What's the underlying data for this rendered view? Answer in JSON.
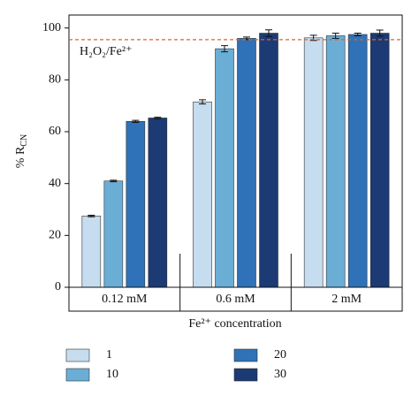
{
  "chart_data": {
    "type": "bar",
    "y_label": {
      "text": "% R",
      "sub": "CN"
    },
    "x_label": "Fe²⁺ concentration",
    "categories": [
      "0.12 mM",
      "0.6 mM",
      "2 mM"
    ],
    "series": [
      {
        "name": "1",
        "color": "#c6dcef",
        "values": [
          27.5,
          71.5,
          96.2
        ],
        "errors": [
          0.3,
          0.8,
          1.0
        ]
      },
      {
        "name": "10",
        "color": "#6aaed6",
        "values": [
          41,
          92,
          97
        ],
        "errors": [
          0.3,
          1.2,
          1.0
        ]
      },
      {
        "name": "20",
        "color": "#2f72b8",
        "values": [
          64,
          96,
          97.5
        ],
        "errors": [
          0.4,
          0.5,
          0.5
        ]
      },
      {
        "name": "30",
        "color": "#1c3a73",
        "values": [
          65.3,
          98,
          98
        ],
        "errors": [
          0.3,
          1.3,
          1.2
        ]
      }
    ],
    "reference_line": {
      "value": 95.5,
      "label": "H₂O₂/Fe²⁺",
      "color": "#e0622a"
    },
    "ylim": [
      0,
      105
    ],
    "yticks": [
      0,
      20,
      40,
      60,
      80,
      100
    ]
  }
}
